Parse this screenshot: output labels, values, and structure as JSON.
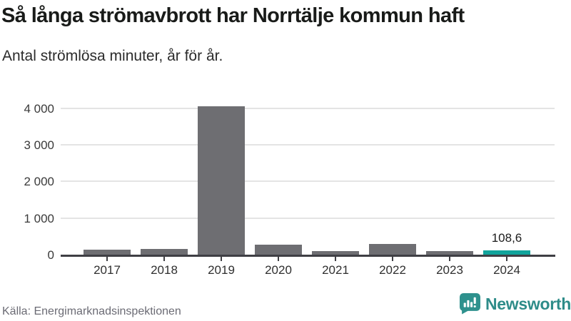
{
  "chart_data": {
    "type": "bar",
    "title": "Så långa strömavbrott har Norrtälje kommun haft",
    "subtitle": "Antal strömlösa minuter, år för år.",
    "categories": [
      "2017",
      "2018",
      "2019",
      "2020",
      "2021",
      "2022",
      "2023",
      "2024"
    ],
    "values": [
      130,
      160,
      4050,
      265,
      105,
      290,
      90,
      108.6
    ],
    "highlight_index": 7,
    "value_label": {
      "index": 7,
      "text": "108,6"
    },
    "yticks": [
      0,
      1000,
      2000,
      3000,
      4000
    ],
    "ytick_labels": [
      "0",
      "1 000",
      "2 000",
      "3 000",
      "4 000"
    ],
    "ylim": [
      0,
      4300
    ],
    "xlabel": "",
    "ylabel": "",
    "grid": "horizontal",
    "legend": "none",
    "bar_color": "#6e6e72",
    "highlight_color": "#11a49c",
    "gridline_color": "#e4e4e4"
  },
  "footer": {
    "source": "Källa: Energimarknadsinspektionen",
    "brand": "Newsworthy"
  }
}
